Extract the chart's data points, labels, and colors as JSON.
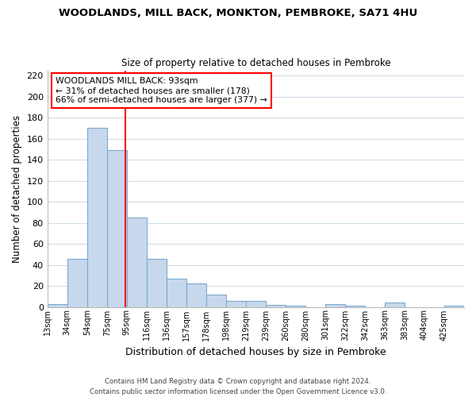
{
  "title": "WOODLANDS, MILL BACK, MONKTON, PEMBROKE, SA71 4HU",
  "subtitle": "Size of property relative to detached houses in Pembroke",
  "xlabel": "Distribution of detached houses by size in Pembroke",
  "ylabel": "Number of detached properties",
  "bin_labels": [
    "13sqm",
    "34sqm",
    "54sqm",
    "75sqm",
    "95sqm",
    "116sqm",
    "136sqm",
    "157sqm",
    "178sqm",
    "198sqm",
    "219sqm",
    "239sqm",
    "260sqm",
    "280sqm",
    "301sqm",
    "322sqm",
    "342sqm",
    "363sqm",
    "383sqm",
    "404sqm",
    "425sqm"
  ],
  "bar_heights": [
    3,
    46,
    170,
    149,
    85,
    46,
    27,
    22,
    12,
    6,
    6,
    2,
    1,
    0,
    3,
    1,
    0,
    4,
    0,
    0,
    1
  ],
  "bar_color": "#c8d8ec",
  "bar_edge_color": "#7aaad0",
  "vline_color": "red",
  "vline_x_index": 3.95,
  "annotation_title": "WOODLANDS MILL BACK: 93sqm",
  "annotation_line1": "← 31% of detached houses are smaller (178)",
  "annotation_line2": "66% of semi-detached houses are larger (377) →",
  "annotation_box_color": "white",
  "annotation_box_edge": "red",
  "ylim": [
    0,
    225
  ],
  "yticks": [
    0,
    20,
    40,
    60,
    80,
    100,
    120,
    140,
    160,
    180,
    200,
    220
  ],
  "grid_color": "#d0dce8",
  "background_color": "#ffffff",
  "plot_bg_color": "#ffffff",
  "footer_line1": "Contains HM Land Registry data © Crown copyright and database right 2024.",
  "footer_line2": "Contains public sector information licensed under the Open Government Licence v3.0."
}
